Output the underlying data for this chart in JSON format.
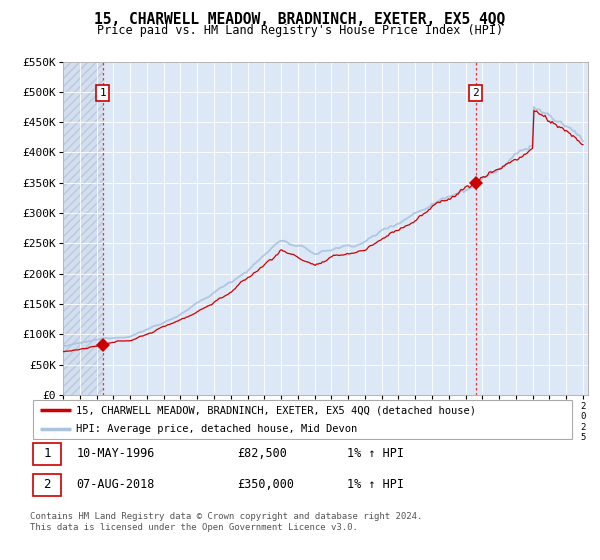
{
  "title": "15, CHARWELL MEADOW, BRADNINCH, EXETER, EX5 4QQ",
  "subtitle": "Price paid vs. HM Land Registry's House Price Index (HPI)",
  "ylim": [
    0,
    550000
  ],
  "yticks": [
    0,
    50000,
    100000,
    150000,
    200000,
    250000,
    300000,
    350000,
    400000,
    450000,
    500000,
    550000
  ],
  "ytick_labels": [
    "£0",
    "£50K",
    "£100K",
    "£150K",
    "£200K",
    "£250K",
    "£300K",
    "£350K",
    "£400K",
    "£450K",
    "£500K",
    "£550K"
  ],
  "x_start_year": 1994,
  "x_end_year": 2025,
  "sale1_year": 1996.36,
  "sale1_price": 82500,
  "sale2_year": 2018.6,
  "sale2_price": 350000,
  "hpi_line_color": "#aac4e0",
  "price_line_color": "#cc0000",
  "marker_color": "#cc0000",
  "vline_color": "#ee3333",
  "plot_bg_color": "#dce8f5",
  "grid_color": "#c0d0e8",
  "legend_label1": "15, CHARWELL MEADOW, BRADNINCH, EXETER, EX5 4QQ (detached house)",
  "legend_label2": "HPI: Average price, detached house, Mid Devon",
  "annotation1_date": "10-MAY-1996",
  "annotation1_price": "£82,500",
  "annotation1_hpi": "1% ↑ HPI",
  "annotation2_date": "07-AUG-2018",
  "annotation2_price": "£350,000",
  "annotation2_hpi": "1% ↑ HPI",
  "footer": "Contains HM Land Registry data © Crown copyright and database right 2024.\nThis data is licensed under the Open Government Licence v3.0."
}
